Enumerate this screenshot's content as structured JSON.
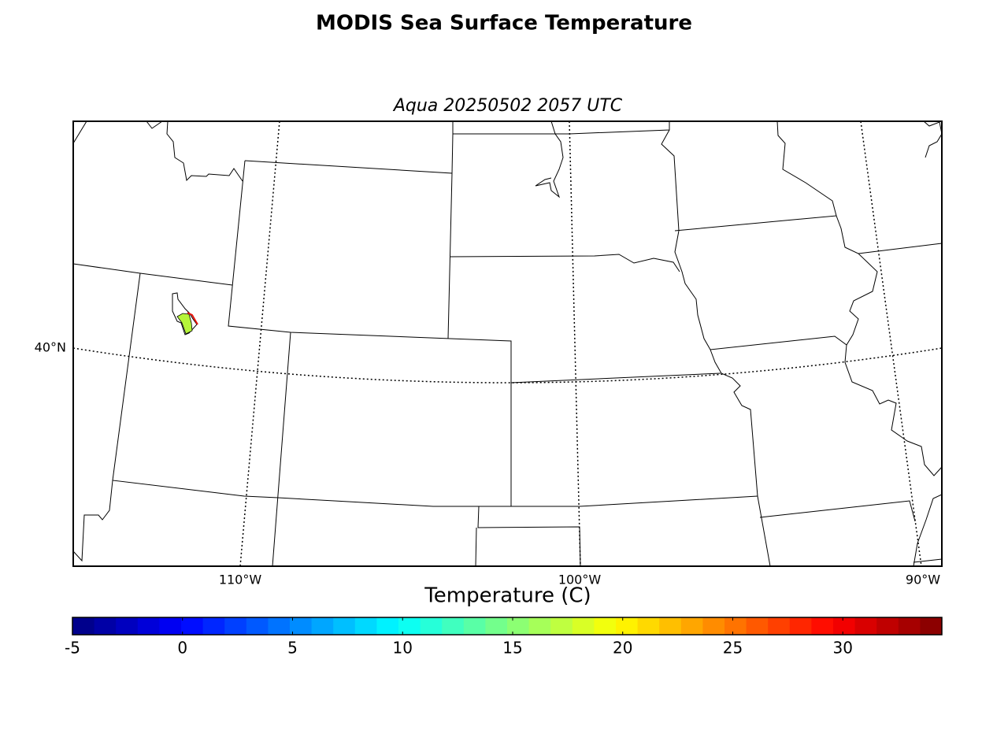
{
  "title": "MODIS Sea Surface Temperature",
  "subtitle": "Aqua 20250502 2057 UTC",
  "map": {
    "lat_labels": [
      "40°N"
    ],
    "lon_labels": [
      "110°W",
      "100°W",
      "90°W"
    ]
  },
  "colorbar": {
    "label": "Temperature (C)",
    "colormap": "jet",
    "clim": [
      -5,
      34.5
    ],
    "ticks": [
      -5,
      0,
      5,
      10,
      15,
      20,
      25,
      30
    ]
  }
}
